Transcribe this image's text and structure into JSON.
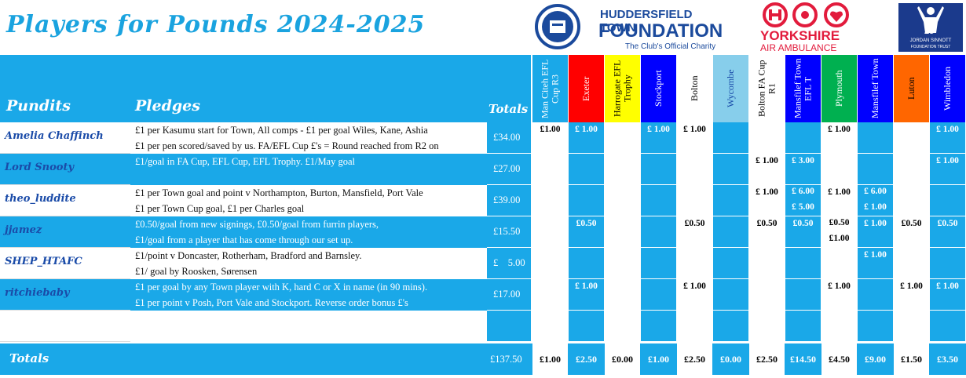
{
  "title": "Players for Pounds 2024-2025",
  "logos": {
    "htf_line1": "HUDDERSFIELD TOWN",
    "htf_line2": "FOUNDATION",
    "htf_line3": "The Club's Official Charity",
    "yaa_line1": "YORKSHIRE",
    "yaa_line2": "AIR AMBULANCE",
    "js_number": "25",
    "js_line1": "JORDAN SINNOTT",
    "js_line2": "FOUNDATION TRUST"
  },
  "headers": {
    "pundits": "Pundits",
    "pledges": "Pledges",
    "totals": "Totals"
  },
  "columns": [
    {
      "label": "Man Citeh EFL Cup R3",
      "bg": "#1aa8e8",
      "fg": "#ffffff"
    },
    {
      "label": "Exeter",
      "bg": "#ff0000",
      "fg": "#ffffff"
    },
    {
      "label": "Harrogate EFL Trophy",
      "bg": "#ffff00",
      "fg": "#000000"
    },
    {
      "label": "Stockport",
      "bg": "#0000ff",
      "fg": "#ffffff"
    },
    {
      "label": "Bolton",
      "bg": "#ffffff",
      "fg": "#000000"
    },
    {
      "label": "Wycombe",
      "bg": "#87ceeb",
      "fg": "#1a4ba8"
    },
    {
      "label": "Bolton FA Cup R1",
      "bg": "#ffffff",
      "fg": "#000000"
    },
    {
      "label": "Mansfilef Town EFL T",
      "bg": "#0000ff",
      "fg": "#ffffff"
    },
    {
      "label": "Plymouth",
      "bg": "#00b050",
      "fg": "#ffffff"
    },
    {
      "label": "Mansfilef Town",
      "bg": "#0000ff",
      "fg": "#ffffff"
    },
    {
      "label": "Luton",
      "bg": "#ff6600",
      "fg": "#000000"
    },
    {
      "label": "Wimbledon",
      "bg": "#0000ff",
      "fg": "#ffffff"
    }
  ],
  "rows": [
    {
      "pundit": "Amelia Chaffinch",
      "pledge1": "£1 per Kasumu start for Town, All comps - £1 per goal Wiles, Kane, Ashia",
      "pledge2": "£1 per pen scored/saved by us. FA/EFL Cup £'s = Round reached from R2 on",
      "total": "£34.00",
      "amounts": [
        [
          "£1.00"
        ],
        [
          "£ 1.00"
        ],
        [],
        [
          "£ 1.00"
        ],
        [
          "£ 1.00"
        ],
        [],
        [],
        [],
        [
          "£ 1.00"
        ],
        [],
        [],
        [
          "£ 1.00"
        ]
      ]
    },
    {
      "pundit": "Lord Snooty",
      "pledge1": "£1/goal in FA Cup, EFL Cup, EFL Trophy. £1/May goal",
      "pledge2": "",
      "total": "£27.00",
      "amounts": [
        [],
        [],
        [],
        [],
        [],
        [],
        [
          "£ 1.00"
        ],
        [
          "£ 3.00"
        ],
        [],
        [],
        [],
        [
          "£ 1.00"
        ]
      ]
    },
    {
      "pundit": "theo_luddite",
      "pledge1": "£1 per Town goal and point v Northampton, Burton, Mansfield, Port Vale",
      "pledge2": "£1 per Town Cup goal, £1 per Charles goal",
      "total": "£39.00",
      "amounts": [
        [],
        [],
        [],
        [],
        [],
        [],
        [
          "£ 1.00"
        ],
        [
          "£ 6.00",
          "£ 5.00"
        ],
        [
          "£ 1.00"
        ],
        [
          "£ 6.00",
          "£ 1.00"
        ],
        [],
        []
      ]
    },
    {
      "pundit": "jjamez",
      "pledge1": "£0.50/goal from new signings, £0.50/goal from furrin players,",
      "pledge2": "£1/goal from a player that has come through our set up.",
      "total": "£15.50",
      "amounts": [
        [],
        [
          "£0.50"
        ],
        [],
        [],
        [
          "£0.50"
        ],
        [],
        [
          "£0.50"
        ],
        [
          "£0.50"
        ],
        [
          "£0.50",
          "£1.00"
        ],
        [
          "£ 1.00"
        ],
        [
          "£0.50"
        ],
        [
          "£0.50"
        ]
      ]
    },
    {
      "pundit": "SHEP_HTAFC",
      "pledge1": "£1/point v Doncaster, Rotherham, Bradford and Barnsley.",
      "pledge2": "£1/ goal by Roosken, Sørensen",
      "total": "£    5.00",
      "amounts": [
        [],
        [],
        [],
        [],
        [],
        [],
        [],
        [],
        [],
        [
          "£ 1.00"
        ],
        [],
        []
      ]
    },
    {
      "pundit": "ritchiebaby",
      "pledge1": "£1 per goal by any Town player with K, hard C or X in name (in 90 mins).",
      "pledge2": "£1 per point v Posh, Port Vale and Stockport. Reverse order bonus £'s",
      "total": "£17.00",
      "amounts": [
        [],
        [
          "£ 1.00"
        ],
        [],
        [],
        [
          "£ 1.00"
        ],
        [],
        [],
        [],
        [
          "£ 1.00"
        ],
        [],
        [
          "£ 1.00"
        ],
        [
          "£ 1.00"
        ]
      ]
    },
    {
      "pundit": "",
      "pledge1": "",
      "pledge2": "",
      "total": "",
      "amounts": [
        [],
        [],
        [],
        [],
        [],
        [],
        [],
        [],
        [],
        [],
        [],
        []
      ]
    }
  ],
  "totals_row": {
    "label": "Totals",
    "grand": "£137.50",
    "values": [
      "£1.00",
      "£2.50",
      "£0.00",
      "£1.00",
      "£2.50",
      "£0.00",
      "£2.50",
      "£14.50",
      "£4.50",
      "£9.00",
      "£1.50",
      "£3.50"
    ]
  }
}
